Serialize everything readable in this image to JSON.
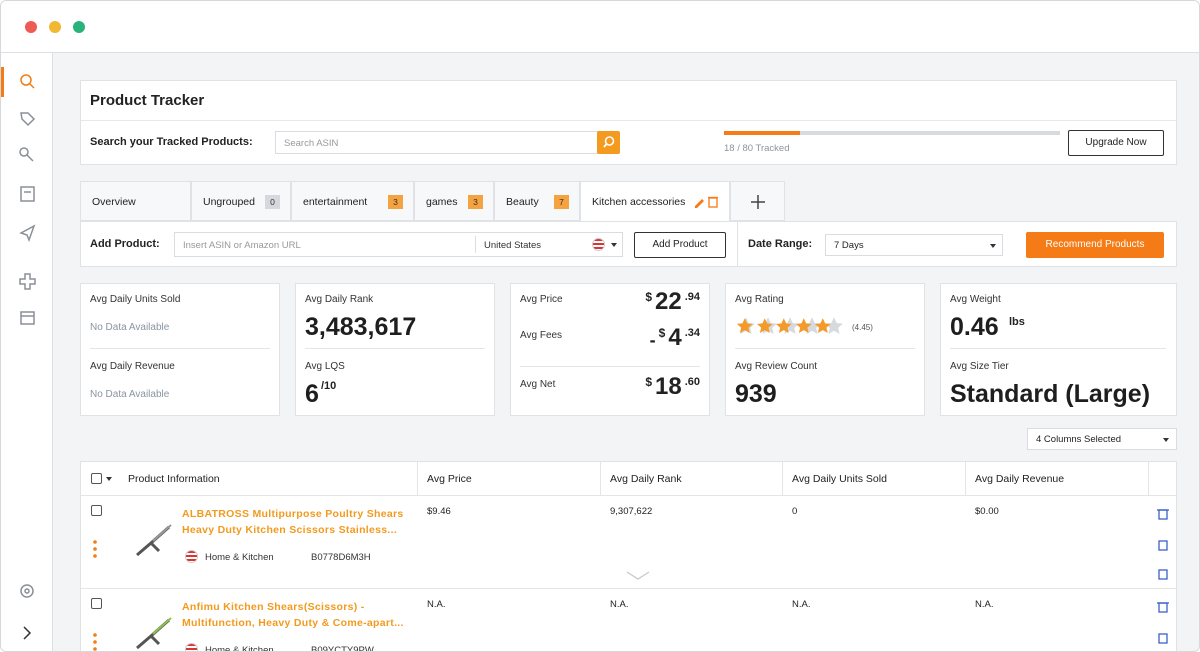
{
  "header": {
    "title": "Product Tracker",
    "search_label": "Search your Tracked Products:",
    "search_placeholder": "Search ASIN",
    "tracked": 18,
    "limit": 80,
    "tracked_label": "18 / 80 Tracked",
    "upgrade_button": "Upgrade Now"
  },
  "tabs": [
    {
      "label": "Overview"
    },
    {
      "label": "Ungrouped",
      "count": 0
    },
    {
      "label": "entertainment",
      "count": 3
    },
    {
      "label": "games",
      "count": 3
    },
    {
      "label": "Beauty",
      "count": 7
    },
    {
      "label": "Kitchen accessories"
    }
  ],
  "toolbar": {
    "add_label": "Add Product:",
    "input_placeholder": "Insert ASIN or Amazon URL",
    "country": "United States",
    "add_button": "Add Product",
    "date_label": "Date Range:",
    "date_value": "7 Days",
    "recommend_button": "Recommend Products"
  },
  "stats": {
    "sales": [
      {
        "label": "Avg Daily Units Sold",
        "value": "No Data Available"
      },
      {
        "label": "Avg Daily Revenue",
        "value": "No Data Available"
      }
    ],
    "rank": {
      "rank_label": "Avg Daily Rank",
      "rank_value": "3,483,617",
      "lqs_label": "Avg LQS",
      "lqs_value": "6",
      "lqs_suffix": "/10"
    },
    "money": [
      {
        "label": "Avg Price",
        "currency": "$",
        "whole": "22",
        "cents": ".94"
      },
      {
        "label": "Avg Fees",
        "sign": "-",
        "currency": "$",
        "whole": "4",
        "cents": ".34"
      },
      {
        "label": "Avg Net",
        "currency": "$",
        "whole": "18",
        "cents": ".60"
      }
    ],
    "rating": {
      "rating_label": "Avg Rating",
      "rating": 4.45,
      "rating_text": "(4.45)",
      "review_label": "Avg Review Count",
      "review_value": "939"
    },
    "size": {
      "weight_label": "Avg Weight",
      "weight": "0.46",
      "unit": "lbs",
      "tier_label": "Avg Size Tier",
      "tier": "Standard (Large)"
    }
  },
  "table": {
    "columns_selected": "4 Columns Selected",
    "headers": [
      "Product Information",
      "Avg Price",
      "Avg Daily Rank",
      "Avg Daily Units Sold",
      "Avg Daily Revenue"
    ],
    "rows": [
      {
        "title": "ALBATROSS Multipurpose Poultry Shears Heavy Duty Kitchen Scissors Stainless...",
        "category": "Home & Kitchen",
        "asin": "B0778D6M3H",
        "cells": [
          "$9.46",
          "9,307,622",
          "0",
          "$0.00"
        ]
      },
      {
        "title": "Anfimu Kitchen Shears(Scissors) - Multifunction, Heavy Duty & Come-apart...",
        "category": "Home & Kitchen",
        "asin": "B09YCTY9PW",
        "cells": [
          "N.A.",
          "N.A.",
          "N.A.",
          "N.A."
        ]
      }
    ]
  }
}
